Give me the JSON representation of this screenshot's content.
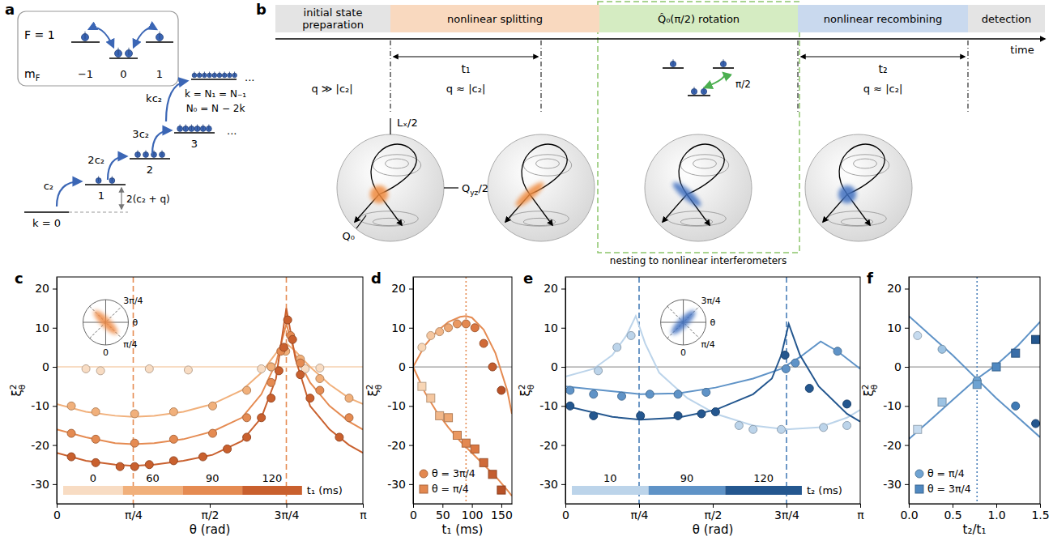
{
  "panel_a": {
    "letter": "a",
    "box": {
      "F": "F = 1",
      "mF": [
        {
          "text": "m"
        },
        {
          "text": "F",
          "sub": true
        }
      ],
      "levels": [
        "−1",
        "0",
        "1"
      ]
    },
    "ladder": {
      "k_labels": [
        "k = 0",
        "1",
        "2",
        "3"
      ],
      "couplings": [
        "c₂",
        "2c₂",
        "3c₂",
        "kc₂"
      ],
      "gap": "2(c₂ + q)",
      "top": [
        "k = N₁ = N₋₁",
        "N₀ = N − 2k"
      ],
      "ellipsis": "..."
    }
  },
  "panel_b": {
    "letter": "b",
    "stages": [
      "initial state preparation",
      "nonlinear splitting",
      "Q̂₀(π/2) rotation",
      "nonlinear recombining",
      "detection"
    ],
    "time": "time",
    "t1": "t₁",
    "t2": "t₂",
    "q": [
      "q ≫ |c₂|",
      "q ≈ |c₂|",
      "q ≈ |c₂|"
    ],
    "rotation_angle": "π/2",
    "axes": {
      "Lx": "Lₓ/2",
      "Qyz": [
        {
          "text": "Q"
        },
        {
          "text": "yz",
          "sub": true
        },
        {
          "text": "/2"
        }
      ],
      "Q0": "Q₀"
    },
    "nesting": "nesting to nonlinear interferometers"
  },
  "chart_data": [
    {
      "type": "scatter",
      "panel_label": "c",
      "xlabel": "θ (rad)",
      "ylabel": [
        {
          "text": "ξ"
        },
        {
          "text": "2",
          "sup": true
        },
        {
          "text": "θ",
          "sub": true
        }
      ],
      "xlim": [
        0,
        3.1416
      ],
      "xticks": [
        0,
        {
          "value": 0.7854,
          "label": "π/4"
        },
        {
          "value": 1.5708,
          "label": "π/2"
        },
        {
          "value": 2.3562,
          "label": "3π/4"
        },
        {
          "value": 3.1416,
          "label": "π"
        }
      ],
      "ylim": [
        -35,
        23
      ],
      "yticks": [
        -30,
        -20,
        -10,
        0,
        10,
        20
      ],
      "hline": 0,
      "vlines": {
        "values": [
          0.7854,
          2.3562
        ],
        "color": "#e58b52",
        "line_style": "dashed"
      },
      "legend": "lower left",
      "legend_title": "t₁ (ms)",
      "inset": {
        "labels": [
          "3π/4",
          "θ",
          "π/4",
          "0"
        ],
        "color": "#ee8a45"
      },
      "series": [
        {
          "name": "0",
          "color": "#f8dcc3",
          "marker": "circle",
          "x": [
            0.3,
            0.45,
            0.95,
            1.35,
            2.1,
            2.2,
            2.55,
            2.7
          ],
          "values": [
            -0.5,
            -1,
            -0.5,
            -0.8,
            -0.5,
            0,
            -0.5,
            -0.3
          ],
          "fit_x": [
            0,
            3.1416
          ],
          "fit_values": [
            0,
            0
          ]
        },
        {
          "name": "60",
          "color": "#f1b07b",
          "marker": "circle",
          "x": [
            0.15,
            0.4,
            0.8,
            1.2,
            1.6,
            1.95,
            2.2,
            2.35,
            2.5,
            2.7,
            3.0
          ],
          "values": [
            -10,
            -11.5,
            -12,
            -11.5,
            -10,
            -6,
            0,
            4,
            2,
            -3,
            -8
          ],
          "fit_x": [
            0,
            0.3,
            0.6,
            0.785,
            1.0,
            1.3,
            1.6,
            1.9,
            2.1,
            2.25,
            2.356,
            2.45,
            2.6,
            2.8,
            3.0,
            3.1416
          ],
          "fit_values": [
            -9.5,
            -11.5,
            -12.5,
            -12.8,
            -12.5,
            -11.5,
            -9.5,
            -6,
            -1.5,
            3.5,
            6,
            4,
            0,
            -4.5,
            -8,
            -9.5
          ]
        },
        {
          "name": "90",
          "color": "#e58b52",
          "marker": "circle",
          "x": [
            0.15,
            0.4,
            0.8,
            1.2,
            1.6,
            1.95,
            2.2,
            2.3,
            2.4,
            2.5,
            2.7,
            3.0
          ],
          "values": [
            -17,
            -18.5,
            -19.5,
            -18.5,
            -17,
            -13,
            -4,
            4,
            8,
            1,
            -6,
            -13
          ],
          "fit_x": [
            0,
            0.3,
            0.6,
            0.785,
            1.0,
            1.3,
            1.6,
            1.9,
            2.1,
            2.25,
            2.356,
            2.45,
            2.6,
            2.8,
            3.0,
            3.1416
          ],
          "fit_values": [
            -16,
            -18,
            -19.5,
            -19.8,
            -19.5,
            -18.5,
            -16.5,
            -13,
            -7,
            1,
            11,
            3,
            -4,
            -10,
            -14,
            -16
          ]
        },
        {
          "name": "120",
          "color": "#c9602e",
          "marker": "circle",
          "x": [
            0.15,
            0.4,
            0.65,
            0.8,
            0.95,
            1.2,
            1.5,
            1.75,
            1.95,
            2.1,
            2.2,
            2.28,
            2.33,
            2.37,
            2.42,
            2.5,
            2.6,
            2.9
          ],
          "values": [
            -23,
            -24.5,
            -25.5,
            -25.5,
            -25,
            -24,
            -23,
            -21,
            -18,
            -13,
            -8,
            -1,
            5,
            12,
            7,
            -2,
            -8,
            -18
          ],
          "fit_x": [
            0,
            0.3,
            0.6,
            0.785,
            1.0,
            1.3,
            1.6,
            1.9,
            2.1,
            2.25,
            2.356,
            2.45,
            2.6,
            2.8,
            3.0,
            3.1416
          ],
          "fit_values": [
            -22,
            -24,
            -25,
            -25.3,
            -25,
            -24,
            -22.5,
            -19,
            -13,
            -3,
            15,
            2,
            -10,
            -16,
            -20,
            -22
          ]
        }
      ]
    },
    {
      "type": "scatter",
      "panel_label": "d",
      "xlabel": "t₁ (ms)",
      "ylabel": [
        {
          "text": "ξ"
        },
        {
          "text": "2",
          "sup": true
        },
        {
          "text": "θ",
          "sub": true
        }
      ],
      "xlim": [
        0,
        168
      ],
      "xticks": [
        0,
        50,
        100,
        150
      ],
      "ylim": [
        -35,
        23
      ],
      "yticks": [
        -30,
        -20,
        -10,
        0,
        10,
        20
      ],
      "hline": 0,
      "vlines": {
        "values": [
          90
        ],
        "color": "#e58b52",
        "line_style": "dotted"
      },
      "legend": "lower left",
      "series": [
        {
          "name": "θ = 3π/4",
          "color": "#e58b52",
          "marker": "circle",
          "colors": [
            "#f8d6b6",
            "#f5c7a0",
            "#f2b88a",
            "#eea874",
            "#ea9861",
            "#e38850",
            "#db7842",
            "#d06a37",
            "#c45d2e",
            "#b85127"
          ],
          "x": [
            15,
            30,
            45,
            60,
            75,
            90,
            105,
            120,
            135,
            150
          ],
          "values": [
            5,
            8,
            9,
            10,
            11,
            11,
            10,
            6,
            0,
            -6
          ],
          "fit_x": [
            0,
            20,
            40,
            60,
            80,
            90,
            100,
            120,
            140,
            160,
            168
          ],
          "fit_values": [
            0,
            5.5,
            9,
            11.5,
            12.8,
            13,
            12.6,
            9.5,
            3.5,
            -6,
            -12
          ]
        },
        {
          "name": "θ = π/4",
          "color": "#e58b52",
          "marker": "square",
          "colors": [
            "#f8d6b6",
            "#f5c7a0",
            "#f2b88a",
            "#eea874",
            "#ea9861",
            "#e38850",
            "#db7842",
            "#d06a37",
            "#c45d2e",
            "#b85127"
          ],
          "x": [
            15,
            30,
            45,
            60,
            75,
            90,
            105,
            120,
            135,
            150
          ],
          "values": [
            -5,
            -8,
            -12.5,
            -13,
            -17.5,
            -19.5,
            -21,
            -24.5,
            -27.5,
            -31.5
          ],
          "fit_x": [
            0,
            20,
            40,
            60,
            80,
            100,
            120,
            140,
            160,
            168
          ],
          "fit_values": [
            0,
            -6.5,
            -11.5,
            -15.5,
            -19,
            -22,
            -25,
            -28,
            -31.5,
            -33
          ]
        }
      ]
    },
    {
      "type": "scatter",
      "panel_label": "e",
      "xlabel": "θ (rad)",
      "ylabel": [
        {
          "text": "ξ"
        },
        {
          "text": "2",
          "sup": true
        },
        {
          "text": "θ",
          "sub": true
        }
      ],
      "xlim": [
        0,
        3.1416
      ],
      "xticks": [
        0,
        {
          "value": 0.7854,
          "label": "π/4"
        },
        {
          "value": 1.5708,
          "label": "π/2"
        },
        {
          "value": 2.3562,
          "label": "3π/4"
        },
        {
          "value": 3.1416,
          "label": "π"
        }
      ],
      "ylim": [
        -35,
        23
      ],
      "yticks": [
        -30,
        -20,
        -10,
        0,
        10,
        20
      ],
      "hline": 0,
      "vlines": {
        "values": [
          0.7854,
          2.3562
        ],
        "color": "#4a7fb8",
        "line_style": "dashed"
      },
      "legend": "lower left",
      "legend_title": "t₂ (ms)",
      "inset": {
        "labels": [
          "3π/4",
          "θ",
          "π/4",
          "0"
        ],
        "color": "#3f6fc0"
      },
      "series": [
        {
          "name": "10",
          "color": "#bcd4ea",
          "marker": "circle",
          "x": [
            0.35,
            0.55,
            0.7,
            1.85,
            2.0,
            2.3,
            2.75,
            3.0
          ],
          "values": [
            -1,
            5,
            8,
            -15,
            -16,
            -16,
            -15.5,
            -15
          ],
          "fit_x": [
            0,
            0.3,
            0.5,
            0.65,
            0.75,
            0.85,
            1.0,
            1.3,
            1.6,
            2.0,
            2.35,
            2.7,
            3.0,
            3.1416
          ],
          "fit_values": [
            -2.5,
            -0.5,
            3,
            8,
            13,
            6,
            -1.5,
            -8,
            -12,
            -15,
            -16,
            -15.5,
            -13,
            -11
          ]
        },
        {
          "name": "90",
          "color": "#5f93c7",
          "marker": "circle",
          "x": [
            0.05,
            0.3,
            0.6,
            0.9,
            1.2,
            1.5,
            2.35,
            2.45,
            2.9
          ],
          "values": [
            -6,
            -7,
            -7.5,
            -7,
            -7,
            -6.5,
            -0.5,
            1,
            4
          ],
          "fit_x": [
            0,
            0.4,
            0.8,
            1.2,
            1.6,
            2.0,
            2.3,
            2.5,
            2.72,
            2.9,
            3.1416
          ],
          "fit_values": [
            -5,
            -6,
            -7,
            -6.8,
            -5.3,
            -3,
            -0.5,
            2.5,
            6.5,
            4,
            -0.5
          ]
        },
        {
          "name": "120",
          "color": "#24578f",
          "marker": "circle",
          "x": [
            0.05,
            0.3,
            0.8,
            1.2,
            1.45,
            1.6,
            2.34,
            2.6,
            3.0
          ],
          "values": [
            -10,
            -12.5,
            -12.5,
            -12.5,
            -12,
            -11.5,
            3,
            -5.5,
            -9.5
          ],
          "fit_x": [
            0,
            0.5,
            0.8,
            1.2,
            1.6,
            2.0,
            2.2,
            2.3,
            2.38,
            2.5,
            2.7,
            3.0,
            3.1416
          ],
          "fit_values": [
            -10,
            -12.8,
            -13.5,
            -13,
            -11,
            -7,
            -3,
            3,
            11,
            3,
            -5,
            -12,
            -14
          ]
        }
      ]
    },
    {
      "type": "scatter",
      "panel_label": "f",
      "xlabel": "t₂/t₁",
      "ylabel": [
        {
          "text": "ξ"
        },
        {
          "text": "2",
          "sup": true
        },
        {
          "text": "θ",
          "sub": true
        }
      ],
      "xlim": [
        0,
        1.5
      ],
      "xticks": [
        {
          "value": 0,
          "label": "0.0"
        },
        0.5,
        {
          "value": 1,
          "label": "1.0"
        },
        1.5
      ],
      "ylim": [
        -35,
        23
      ],
      "yticks": [
        -30,
        -20,
        -10,
        0,
        10,
        20
      ],
      "hline": 0,
      "vlines": {
        "values": [
          0.78
        ],
        "color": "#4a7fb8",
        "line_style": "dotted"
      },
      "legend": "lower left",
      "series": [
        {
          "name": "θ = π/4",
          "color": "#5f93c7",
          "marker": "circle",
          "colors": [
            "#c6dbef",
            "#9dc3e3",
            "#6fa3d2",
            "#3f7ab5",
            "#24578f"
          ],
          "x": [
            0.1,
            0.38,
            0.78,
            1.22,
            1.45
          ],
          "values": [
            8,
            4.5,
            -3.5,
            -10,
            -14.5
          ],
          "fit_x": [
            0,
            0.25,
            0.5,
            0.75,
            1.0,
            1.25,
            1.5
          ],
          "fit_values": [
            13,
            8,
            3,
            -2.5,
            -8,
            -13,
            -18
          ]
        },
        {
          "name": "θ = 3π/4",
          "color": "#5f93c7",
          "marker": "square",
          "colors": [
            "#c6dbef",
            "#9dc3e3",
            "#6fa3d2",
            "#4f88c0",
            "#3a6ea8",
            "#24578f"
          ],
          "x": [
            0.1,
            0.38,
            0.78,
            1.0,
            1.22,
            1.45
          ],
          "values": [
            -16,
            -9,
            -4.5,
            0,
            3.5,
            7
          ],
          "fit_x": [
            0,
            0.25,
            0.5,
            0.75,
            1.0,
            1.25,
            1.5
          ],
          "fit_values": [
            -18.5,
            -13.5,
            -8.5,
            -3.5,
            0.5,
            5.5,
            11.5
          ]
        }
      ]
    }
  ]
}
